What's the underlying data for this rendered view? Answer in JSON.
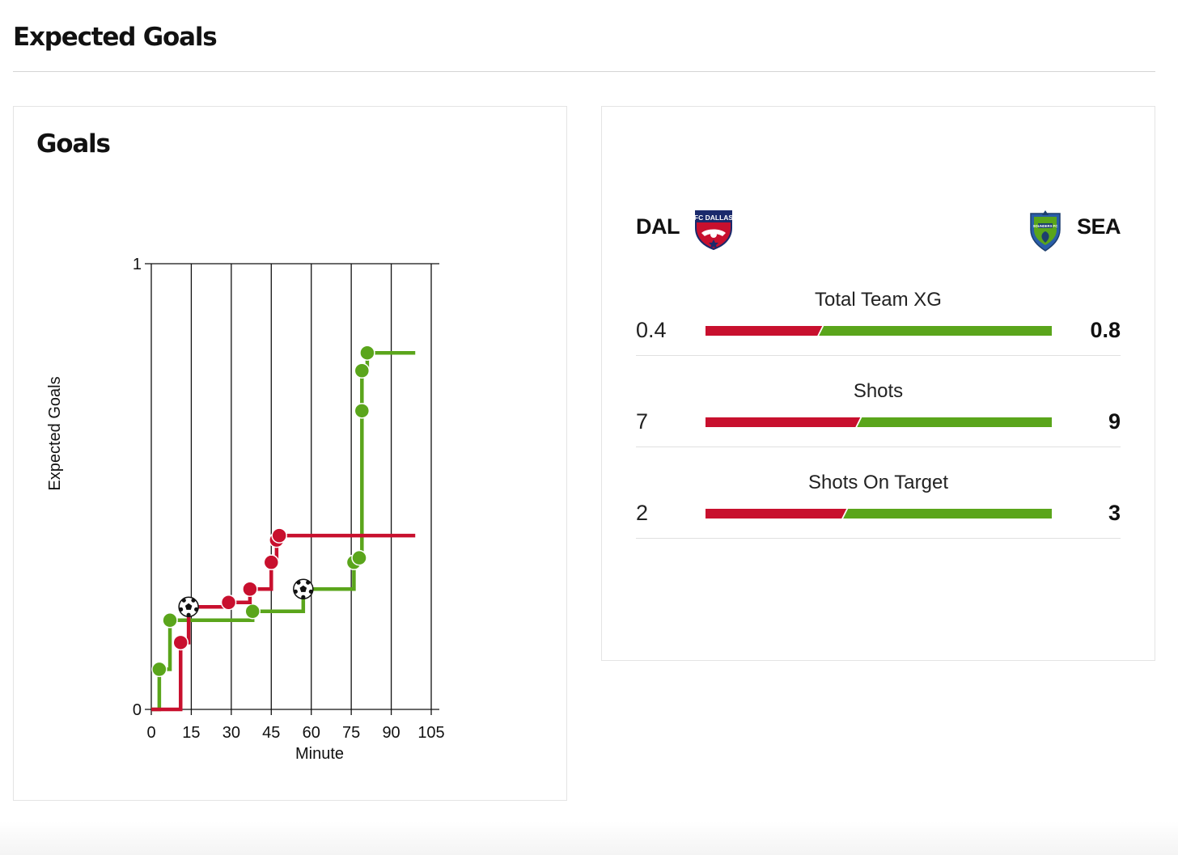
{
  "page": {
    "title": "Expected Goals"
  },
  "chart_card": {
    "title": "Goals"
  },
  "chart_data": {
    "type": "line",
    "xlabel": "Minute",
    "ylabel": "Expected Goals",
    "xlim": [
      0,
      105
    ],
    "ylim": [
      0,
      1
    ],
    "xticks": [
      0,
      15,
      30,
      45,
      60,
      75,
      90,
      105
    ],
    "yticks": [
      0,
      1
    ],
    "grid": "vertical",
    "series": [
      {
        "team": "DAL",
        "color": "#c8102e",
        "shots": [
          {
            "minute": 11,
            "xg": 0.15
          },
          {
            "minute": 14,
            "xg": 0.23
          },
          {
            "minute": 29,
            "xg": 0.24
          },
          {
            "minute": 37,
            "xg": 0.27
          },
          {
            "minute": 45,
            "xg": 0.33
          },
          {
            "minute": 47,
            "xg": 0.38
          },
          {
            "minute": 48,
            "xg": 0.39
          }
        ],
        "goal_minutes": [
          14
        ],
        "end_minute": 99
      },
      {
        "team": "SEA",
        "color": "#5aa51b",
        "shots": [
          {
            "minute": 3,
            "xg": 0.09
          },
          {
            "minute": 7,
            "xg": 0.2
          },
          {
            "minute": 38,
            "xg": 0.22
          },
          {
            "minute": 57,
            "xg": 0.27
          },
          {
            "minute": 76,
            "xg": 0.33
          },
          {
            "minute": 78,
            "xg": 0.34
          },
          {
            "minute": 79,
            "xg": 0.67
          },
          {
            "minute": 79,
            "xg": 0.76
          },
          {
            "minute": 81,
            "xg": 0.8
          }
        ],
        "goal_minutes": [
          57
        ],
        "end_minute": 99
      }
    ]
  },
  "teams": {
    "home": {
      "abbr": "DAL",
      "color": "#c8102e",
      "crest_text": "FC DALLAS"
    },
    "away": {
      "abbr": "SEA",
      "color": "#5aa51b",
      "crest_text": "SOUNDERS FC"
    }
  },
  "stats": [
    {
      "label": "Total Team XG",
      "home": "0.4",
      "away": "0.8",
      "home_share": 0.33
    },
    {
      "label": "Shots",
      "home": "7",
      "away": "9",
      "home_share": 0.44
    },
    {
      "label": "Shots On Target",
      "home": "2",
      "away": "3",
      "home_share": 0.4
    }
  ],
  "icons": {
    "goal_marker": "soccer-ball-icon"
  }
}
